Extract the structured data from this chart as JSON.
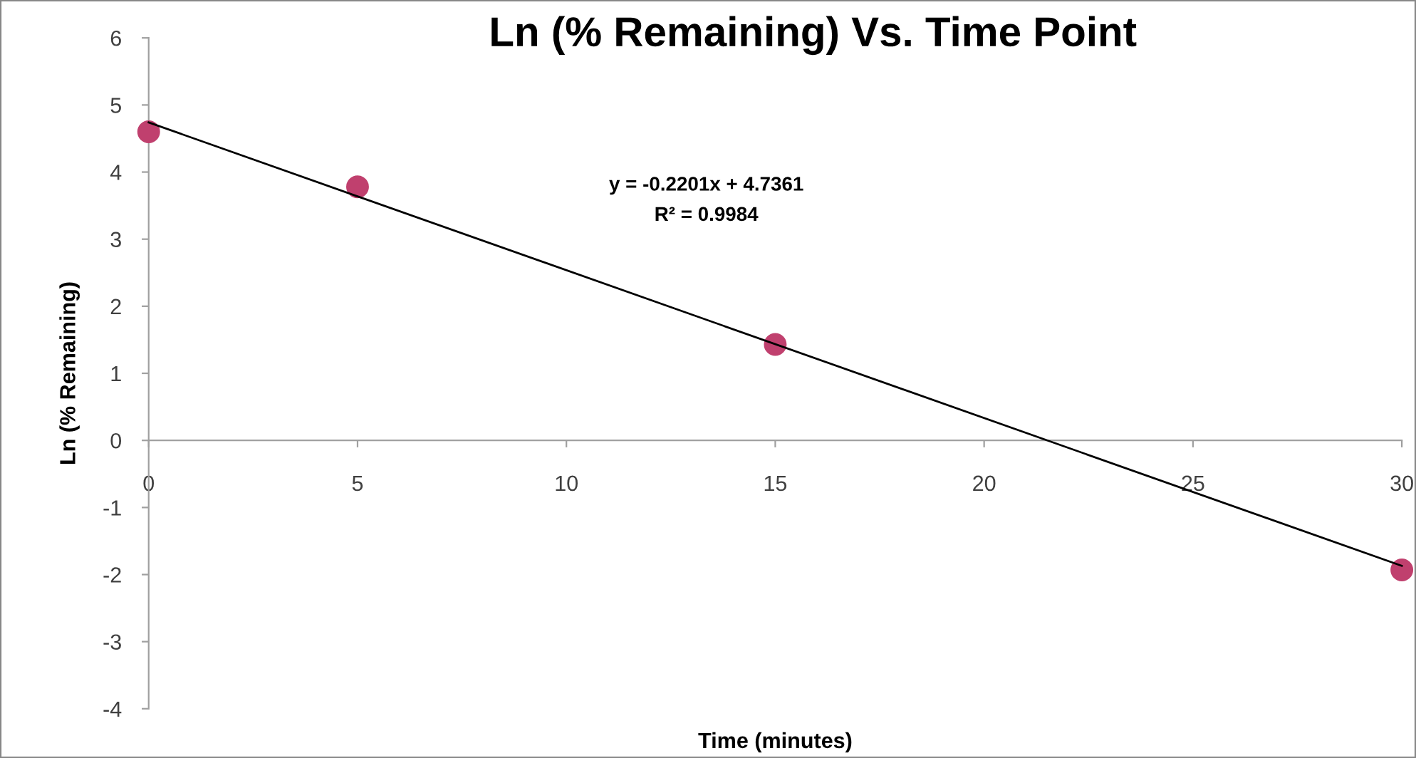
{
  "chart_data": {
    "type": "scatter",
    "title": "Ln (% Remaining) Vs. Time Point",
    "xlabel": "Time (minutes)",
    "ylabel": "Ln (% Remaining)",
    "series": [
      {
        "color": "#c0406e",
        "marker": "circle",
        "x": [
          0,
          5,
          15,
          30
        ],
        "values": [
          4.6,
          3.78,
          1.43,
          -1.93
        ]
      },
      {
        "type": "line",
        "color": "#000000",
        "marker": "none",
        "x": [
          0,
          30
        ],
        "values": [
          4.74,
          -1.87
        ]
      }
    ],
    "annotations": [
      "y = -0.2201x + 4.7361",
      "R² = 0.9984"
    ],
    "xlim": [
      0,
      30
    ],
    "ylim": [
      -4,
      6
    ],
    "xticks": [
      0,
      5,
      10,
      15,
      20,
      25,
      30
    ],
    "yticks": [
      -4,
      -3,
      -2,
      -1,
      0,
      1,
      2,
      3,
      4,
      5,
      6
    ]
  }
}
